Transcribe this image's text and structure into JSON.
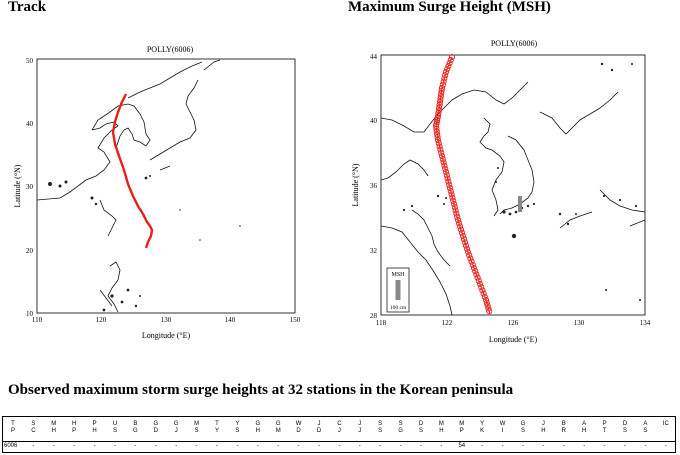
{
  "titles": {
    "track": "Track",
    "msh": "Maximum Surge Height (MSH)",
    "observed": "Observed maximum storm surge heights at 32 stations in the Korean peninsula"
  },
  "track_map": {
    "storm": "POLLY(6006)",
    "xlabel": "Longitude (°E)",
    "ylabel": "Latitude (°N)",
    "xticks": [
      "110",
      "120",
      "130",
      "140",
      "150"
    ],
    "yticks": [
      "10",
      "20",
      "30",
      "40",
      "50"
    ],
    "track_color": "#e8201a"
  },
  "msh_map": {
    "storm": "POLLY(6006)",
    "xlabel": "Longitude (°E)",
    "ylabel": "Latitude (°N)",
    "xticks": [
      "118",
      "122",
      "126",
      "130",
      "134"
    ],
    "yticks": [
      "28",
      "32",
      "36",
      "40",
      "44"
    ],
    "legend_title": "MSH",
    "legend_scale": "100 cm",
    "marker_color": "#e8201a"
  },
  "table": {
    "row_label": "6006",
    "columns": [
      {
        "l1": "T",
        "l2": "P",
        "v": ""
      },
      {
        "l1": "S",
        "l2": "C",
        "v": "-"
      },
      {
        "l1": "M",
        "l2": "H",
        "v": "-"
      },
      {
        "l1": "H",
        "l2": "P",
        "v": "-"
      },
      {
        "l1": "P",
        "l2": "H",
        "v": "-"
      },
      {
        "l1": "U",
        "l2": "S",
        "v": "-"
      },
      {
        "l1": "B",
        "l2": "G",
        "v": "-"
      },
      {
        "l1": "G",
        "l2": "D",
        "v": "-"
      },
      {
        "l1": "G",
        "l2": "J",
        "v": "-"
      },
      {
        "l1": "M",
        "l2": "S",
        "v": "-"
      },
      {
        "l1": "T",
        "l2": "Y",
        "v": "-"
      },
      {
        "l1": "Y",
        "l2": "S",
        "v": "-"
      },
      {
        "l1": "G",
        "l2": "H",
        "v": "-"
      },
      {
        "l1": "G",
        "l2": "M",
        "v": "-"
      },
      {
        "l1": "W",
        "l2": "D",
        "v": "-"
      },
      {
        "l1": "J",
        "l2": "D",
        "v": "-"
      },
      {
        "l1": "C",
        "l2": "J",
        "v": "-"
      },
      {
        "l1": "J",
        "l2": "J",
        "v": "-"
      },
      {
        "l1": "S",
        "l2": "S",
        "v": "-"
      },
      {
        "l1": "S",
        "l2": "G",
        "v": "-"
      },
      {
        "l1": "D",
        "l2": "S",
        "v": "-"
      },
      {
        "l1": "M",
        "l2": "H",
        "v": "-"
      },
      {
        "l1": "M",
        "l2": "P",
        "v": "54"
      },
      {
        "l1": "Y",
        "l2": "K",
        "v": "-"
      },
      {
        "l1": "W",
        "l2": "I",
        "v": "-"
      },
      {
        "l1": "G",
        "l2": "S",
        "v": "-"
      },
      {
        "l1": "J",
        "l2": "H",
        "v": "-"
      },
      {
        "l1": "B",
        "l2": "R",
        "v": "-"
      },
      {
        "l1": "A",
        "l2": "H",
        "v": "-"
      },
      {
        "l1": "P",
        "l2": "T",
        "v": "-"
      },
      {
        "l1": "D",
        "l2": "S",
        "v": "-"
      },
      {
        "l1": "A",
        "l2": "S",
        "v": "-"
      },
      {
        "l1": "IC",
        "l2": "",
        "v": "-"
      }
    ]
  }
}
